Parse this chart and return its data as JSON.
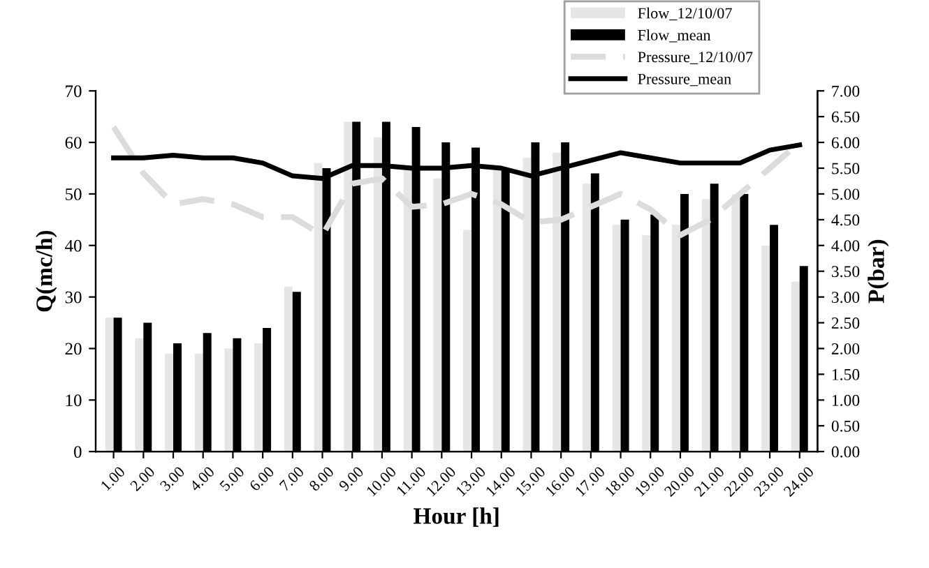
{
  "chart_data": {
    "type": "bar",
    "xlabel": "Hour [h]",
    "ylabel": "Q(mc/h)",
    "y2label": "P(bar)",
    "categories": [
      "1.00",
      "2.00",
      "3.00",
      "4.00",
      "5.00",
      "6.00",
      "7.00",
      "8.00",
      "9.00",
      "10.00",
      "11.00",
      "12.00",
      "13.00",
      "14.00",
      "15.00",
      "16.00",
      "17.00",
      "18.00",
      "19.00",
      "20.00",
      "21.00",
      "22.00",
      "23.00",
      "24.00"
    ],
    "series": [
      {
        "name": "Flow_12/10/07",
        "color": "#e6e6e6",
        "values": [
          26,
          22,
          19,
          19,
          20,
          21,
          32,
          56,
          64,
          61,
          55,
          53,
          43,
          55,
          57,
          58,
          52,
          44,
          42,
          44,
          49,
          50,
          40,
          33
        ]
      },
      {
        "name": "Flow_mean",
        "color": "#000000",
        "values": [
          26,
          25,
          21,
          23,
          22,
          24,
          31,
          55,
          64,
          64,
          63,
          60,
          59,
          55,
          60,
          60,
          54,
          45,
          46,
          50,
          52,
          50,
          44,
          36
        ]
      },
      {
        "name": "Pressure_12/10/07",
        "type": "line",
        "axis": "y2",
        "color": "#dcdcdc",
        "line_style": "dashed",
        "values": [
          6.3,
          5.4,
          4.8,
          4.9,
          4.8,
          4.55,
          4.55,
          4.2,
          5.2,
          5.3,
          4.75,
          4.8,
          5.0,
          4.8,
          4.45,
          4.5,
          4.75,
          5.0,
          4.7,
          4.2,
          4.5,
          5.0,
          5.5,
          6.0
        ]
      },
      {
        "name": "Pressure_mean",
        "type": "line",
        "axis": "y2",
        "color": "#000000",
        "line_style": "solid",
        "values": [
          5.7,
          5.7,
          5.75,
          5.7,
          5.7,
          5.6,
          5.35,
          5.3,
          5.55,
          5.55,
          5.5,
          5.5,
          5.55,
          5.5,
          5.35,
          5.5,
          5.65,
          5.8,
          5.7,
          5.6,
          5.6,
          5.6,
          5.85,
          5.95
        ]
      }
    ],
    "ylim": [
      0,
      70
    ],
    "yticks": [
      0,
      10,
      20,
      30,
      40,
      50,
      60,
      70
    ],
    "y2lim": [
      0,
      7
    ],
    "y2ticks": [
      {
        "value": 0,
        "label": "0.00"
      },
      {
        "value": 0.5,
        "label": "0.50"
      },
      {
        "value": 1,
        "label": "1.00"
      },
      {
        "value": 1.5,
        "label": "1.50"
      },
      {
        "value": 2,
        "label": "2.00"
      },
      {
        "value": 2.5,
        "label": "2.50"
      },
      {
        "value": 3,
        "label": "3.00"
      },
      {
        "value": 3.5,
        "label": "3.50"
      },
      {
        "value": 4,
        "label": "4.00"
      },
      {
        "value": 4.5,
        "label": "4.50"
      },
      {
        "value": 5,
        "label": "5.00"
      },
      {
        "value": 5.5,
        "label": "5.50"
      },
      {
        "value": 6,
        "label": "6.00"
      },
      {
        "value": 6.5,
        "label": "6.50"
      },
      {
        "value": 7,
        "label": "7.00"
      }
    ],
    "grid": false,
    "legend": "top right",
    "marker": "none"
  }
}
